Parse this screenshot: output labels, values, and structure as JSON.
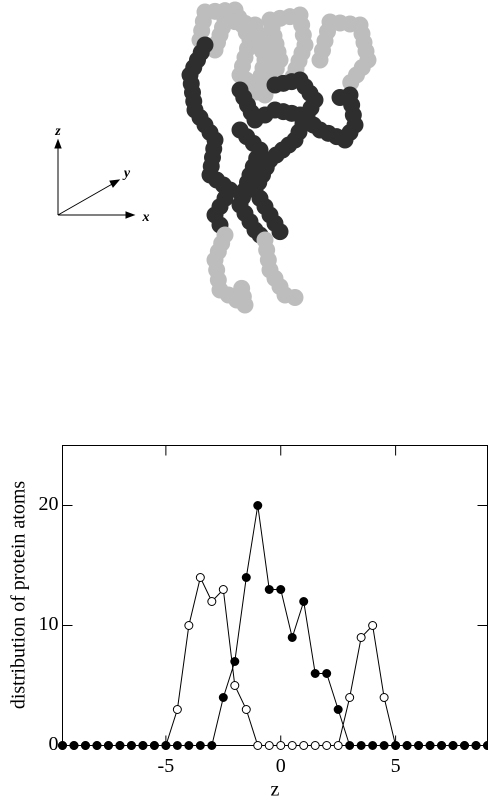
{
  "illustration": {
    "axis_labels": [
      "z",
      "y",
      "x"
    ]
  },
  "chart_data": {
    "type": "line",
    "ylabel": "distribution of protein atoms",
    "xlabel": "z",
    "x": [
      -9.5,
      -9,
      -8.5,
      -8,
      -7.5,
      -7,
      -6.5,
      -6,
      -5.5,
      -5,
      -4.5,
      -4,
      -3.5,
      -3,
      -2.5,
      -2,
      -1.5,
      -1,
      -0.5,
      0,
      0.5,
      1,
      1.5,
      2,
      2.5,
      3,
      3.5,
      4,
      4.5,
      5,
      5.5,
      6,
      6.5,
      7,
      7.5,
      8,
      8.5,
      9
    ],
    "series": [
      {
        "marker": "open",
        "color": "#000000",
        "values": [
          0,
          0,
          0,
          0,
          0,
          0,
          0,
          0,
          0,
          0,
          3,
          10,
          14,
          12,
          13,
          5,
          3,
          0,
          0,
          0,
          0,
          0,
          0,
          0,
          0,
          4,
          9,
          10,
          4,
          0,
          0,
          0,
          0,
          0,
          0,
          0,
          0,
          0
        ]
      },
      {
        "marker": "filled",
        "color": "#000000",
        "values": [
          0,
          0,
          0,
          0,
          0,
          0,
          0,
          0,
          0,
          0,
          0,
          0,
          0,
          0,
          4,
          7,
          14,
          20,
          13,
          13,
          9,
          12,
          6,
          6,
          3,
          0,
          0,
          0,
          0,
          0,
          0,
          0,
          0,
          0,
          0,
          0,
          0,
          0
        ]
      }
    ],
    "xlim": [
      -9.5,
      9
    ],
    "ylim": [
      0,
      25
    ],
    "xticks": [
      -5,
      0,
      5
    ],
    "yticks": [
      0,
      10,
      20
    ]
  }
}
